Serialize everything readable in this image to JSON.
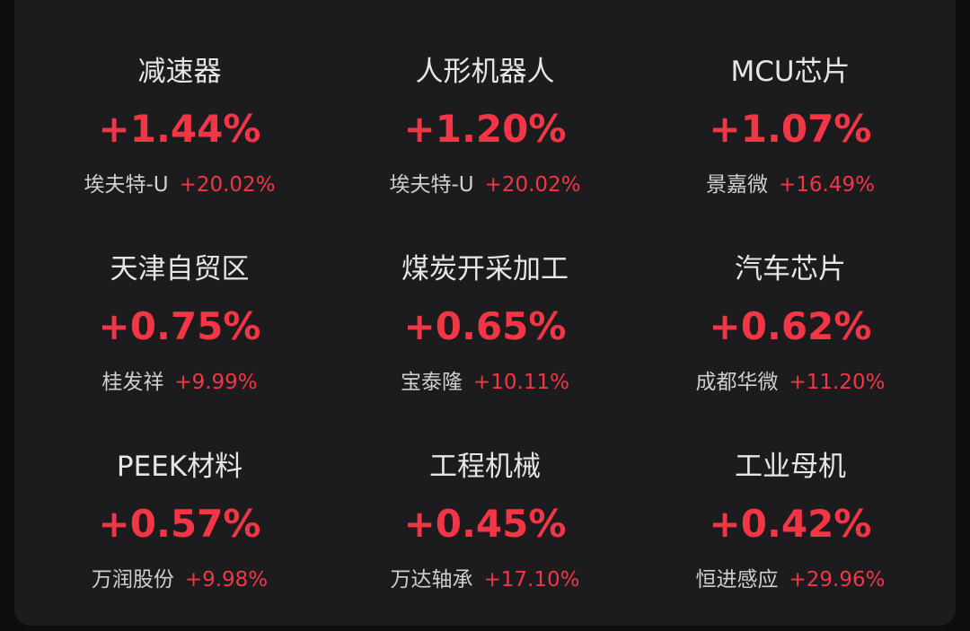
{
  "colors": {
    "background": "#0d0d0d",
    "panel": "#1c1c1e",
    "up": "#f23645",
    "text": "#e6e6e6",
    "subtext": "#cfcfcf"
  },
  "sectors": [
    {
      "name": "减速器",
      "change": "+1.44%",
      "leader_stock": "埃夫特-U",
      "leader_change": "+20.02%"
    },
    {
      "name": "人形机器人",
      "change": "+1.20%",
      "leader_stock": "埃夫特-U",
      "leader_change": "+20.02%"
    },
    {
      "name": "MCU芯片",
      "change": "+1.07%",
      "leader_stock": "景嘉微",
      "leader_change": "+16.49%"
    },
    {
      "name": "天津自贸区",
      "change": "+0.75%",
      "leader_stock": "桂发祥",
      "leader_change": "+9.99%"
    },
    {
      "name": "煤炭开采加工",
      "change": "+0.65%",
      "leader_stock": "宝泰隆",
      "leader_change": "+10.11%"
    },
    {
      "name": "汽车芯片",
      "change": "+0.62%",
      "leader_stock": "成都华微",
      "leader_change": "+11.20%"
    },
    {
      "name": "PEEK材料",
      "change": "+0.57%",
      "leader_stock": "万润股份",
      "leader_change": "+9.98%"
    },
    {
      "name": "工程机械",
      "change": "+0.45%",
      "leader_stock": "万达轴承",
      "leader_change": "+17.10%"
    },
    {
      "name": "工业母机",
      "change": "+0.42%",
      "leader_stock": "恒进感应",
      "leader_change": "+29.96%"
    }
  ]
}
